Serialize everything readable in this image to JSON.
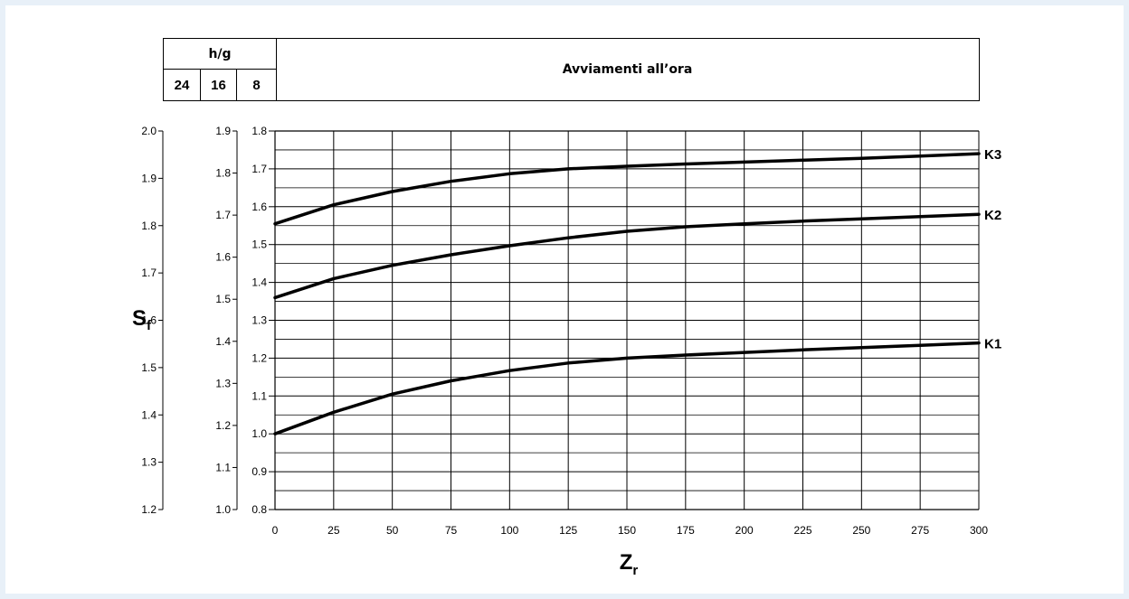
{
  "header": {
    "hg_label": "h/g",
    "hg_values": [
      "24",
      "16",
      "8"
    ],
    "starts_label": "Avviamenti all’ora"
  },
  "chart_data": {
    "type": "line",
    "xlabel": "Z",
    "xlabel_sub": "r",
    "ylabel": "S",
    "ylabel_sub": "f",
    "xlim": [
      0,
      300
    ],
    "x_ticks": [
      0,
      25,
      50,
      75,
      100,
      125,
      150,
      175,
      200,
      225,
      250,
      275,
      300
    ],
    "ylim": [
      0.8,
      1.8
    ],
    "y_ticks": [
      "0.8",
      "0.9",
      "1.0",
      "1.1",
      "1.2",
      "1.3",
      "1.4",
      "1.5",
      "1.6",
      "1.7",
      "1.8"
    ],
    "secondary_axes": [
      {
        "ticks": [
          "1.0",
          "1.1",
          "1.2",
          "1.3",
          "1.4",
          "1.5",
          "1.6",
          "1.7",
          "1.8",
          "1.9"
        ]
      },
      {
        "ticks": [
          "1.2",
          "1.3",
          "1.4",
          "1.5",
          "1.6",
          "1.7",
          "1.8",
          "1.9",
          "2.0"
        ]
      }
    ],
    "grid": true,
    "series": [
      {
        "name": "K1",
        "x": [
          0,
          25,
          50,
          75,
          100,
          125,
          150,
          175,
          200,
          225,
          250,
          275,
          300
        ],
        "values": [
          1.0,
          1.057,
          1.105,
          1.14,
          1.167,
          1.187,
          1.2,
          1.208,
          1.215,
          1.222,
          1.228,
          1.234,
          1.24
        ]
      },
      {
        "name": "K2",
        "x": [
          0,
          25,
          50,
          75,
          100,
          125,
          150,
          175,
          200,
          225,
          250,
          275,
          300
        ],
        "values": [
          1.36,
          1.41,
          1.445,
          1.473,
          1.497,
          1.518,
          1.535,
          1.547,
          1.555,
          1.562,
          1.568,
          1.574,
          1.58
        ]
      },
      {
        "name": "K3",
        "x": [
          0,
          25,
          50,
          75,
          100,
          125,
          150,
          175,
          200,
          225,
          250,
          275,
          300
        ],
        "values": [
          1.555,
          1.605,
          1.64,
          1.667,
          1.687,
          1.7,
          1.707,
          1.713,
          1.718,
          1.723,
          1.728,
          1.734,
          1.74
        ]
      }
    ]
  }
}
